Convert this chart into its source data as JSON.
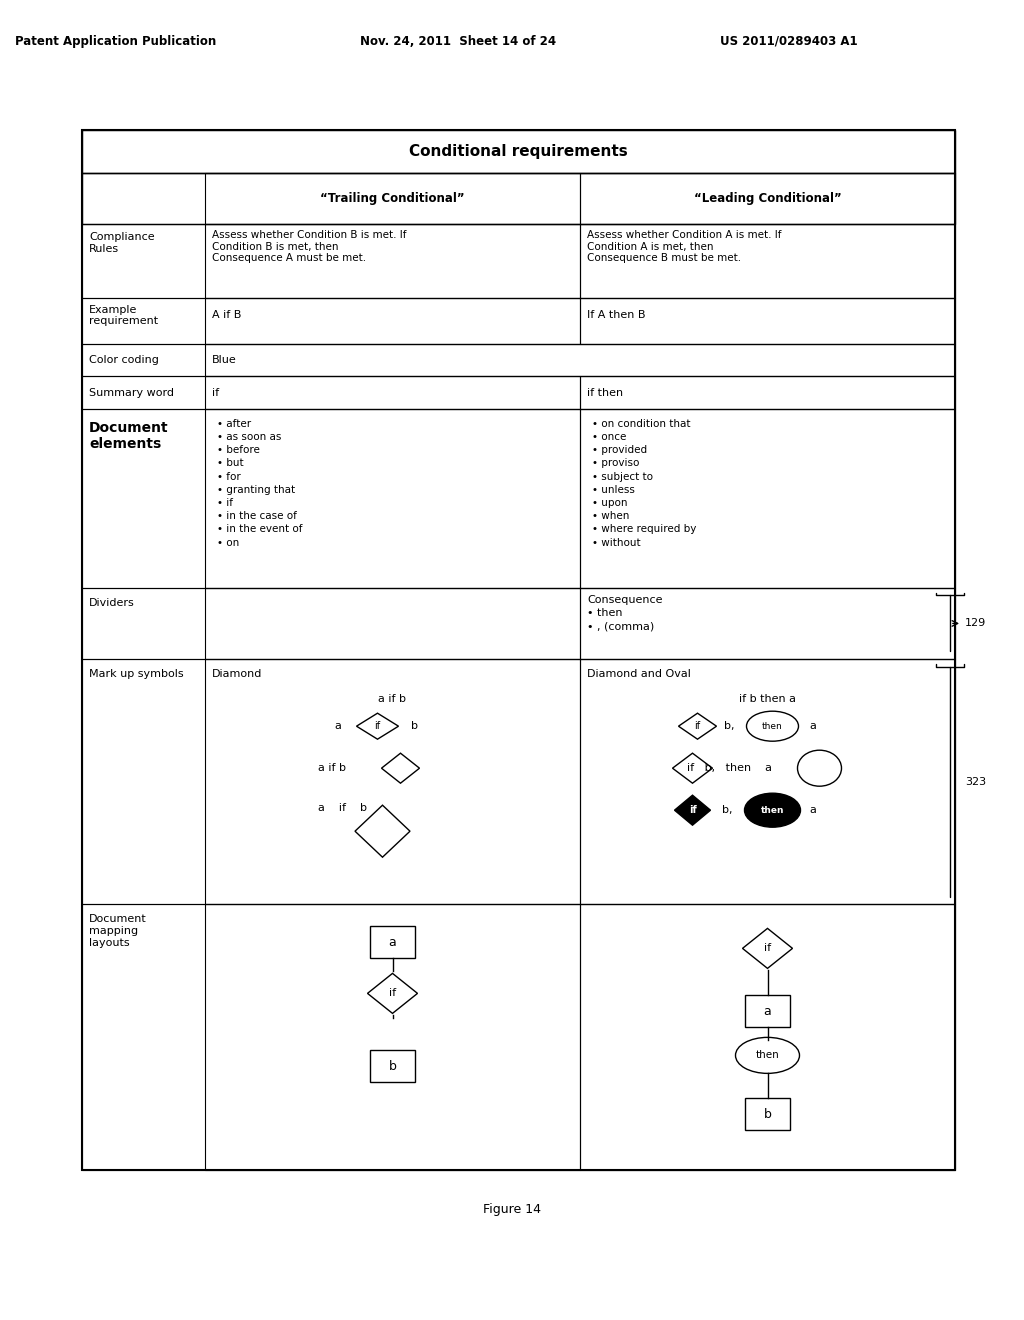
{
  "title": "Conditional requirements",
  "header_row": [
    "",
    "\"Trailing Conditional\"",
    "\"Leading Conditional\""
  ],
  "rows": [
    {
      "label": "Compliance\nRules",
      "col1": "Assess whether Condition B is met. If\nCondition B is met, then\nConsequence A must be met.",
      "col2": "Assess whether Condition A is met. If\nCondition A is met, then\nConsequence B must be met."
    },
    {
      "label": "Example\nrequirement",
      "col1": "A if B",
      "col2": "If A then B"
    },
    {
      "label": "Color coding",
      "col1": "Blue",
      "col2": ""
    },
    {
      "label": "Summary word",
      "col1": "if",
      "col2": "if then"
    },
    {
      "label": "Document\nelements",
      "col1": "• after\n• as soon as\n• before\n• but\n• for\n• granting that\n• if\n• in the case of\n• in the event of\n• on",
      "col2": "• on condition that\n• once\n• provided\n• proviso\n• subject to\n• unless\n• upon\n• when\n• where required by\n• without"
    },
    {
      "label": "Dividers",
      "col1": "",
      "col2": "Consequence\n• then\n• , (comma)"
    },
    {
      "label": "Mark up symbols",
      "col1": "Diamond",
      "col2": "Diamond and Oval"
    },
    {
      "label": "Document\nmapping\nlayouts",
      "col1": "",
      "col2": ""
    }
  ],
  "header_text": "Patent Application Publication    Nov. 24, 2011  Sheet 14 of 24    US 2011/0289403 A1",
  "figure_caption": "Figure 14",
  "ref_129": "129",
  "ref_323": "323",
  "bg_color": "#ffffff",
  "border_color": "#000000"
}
